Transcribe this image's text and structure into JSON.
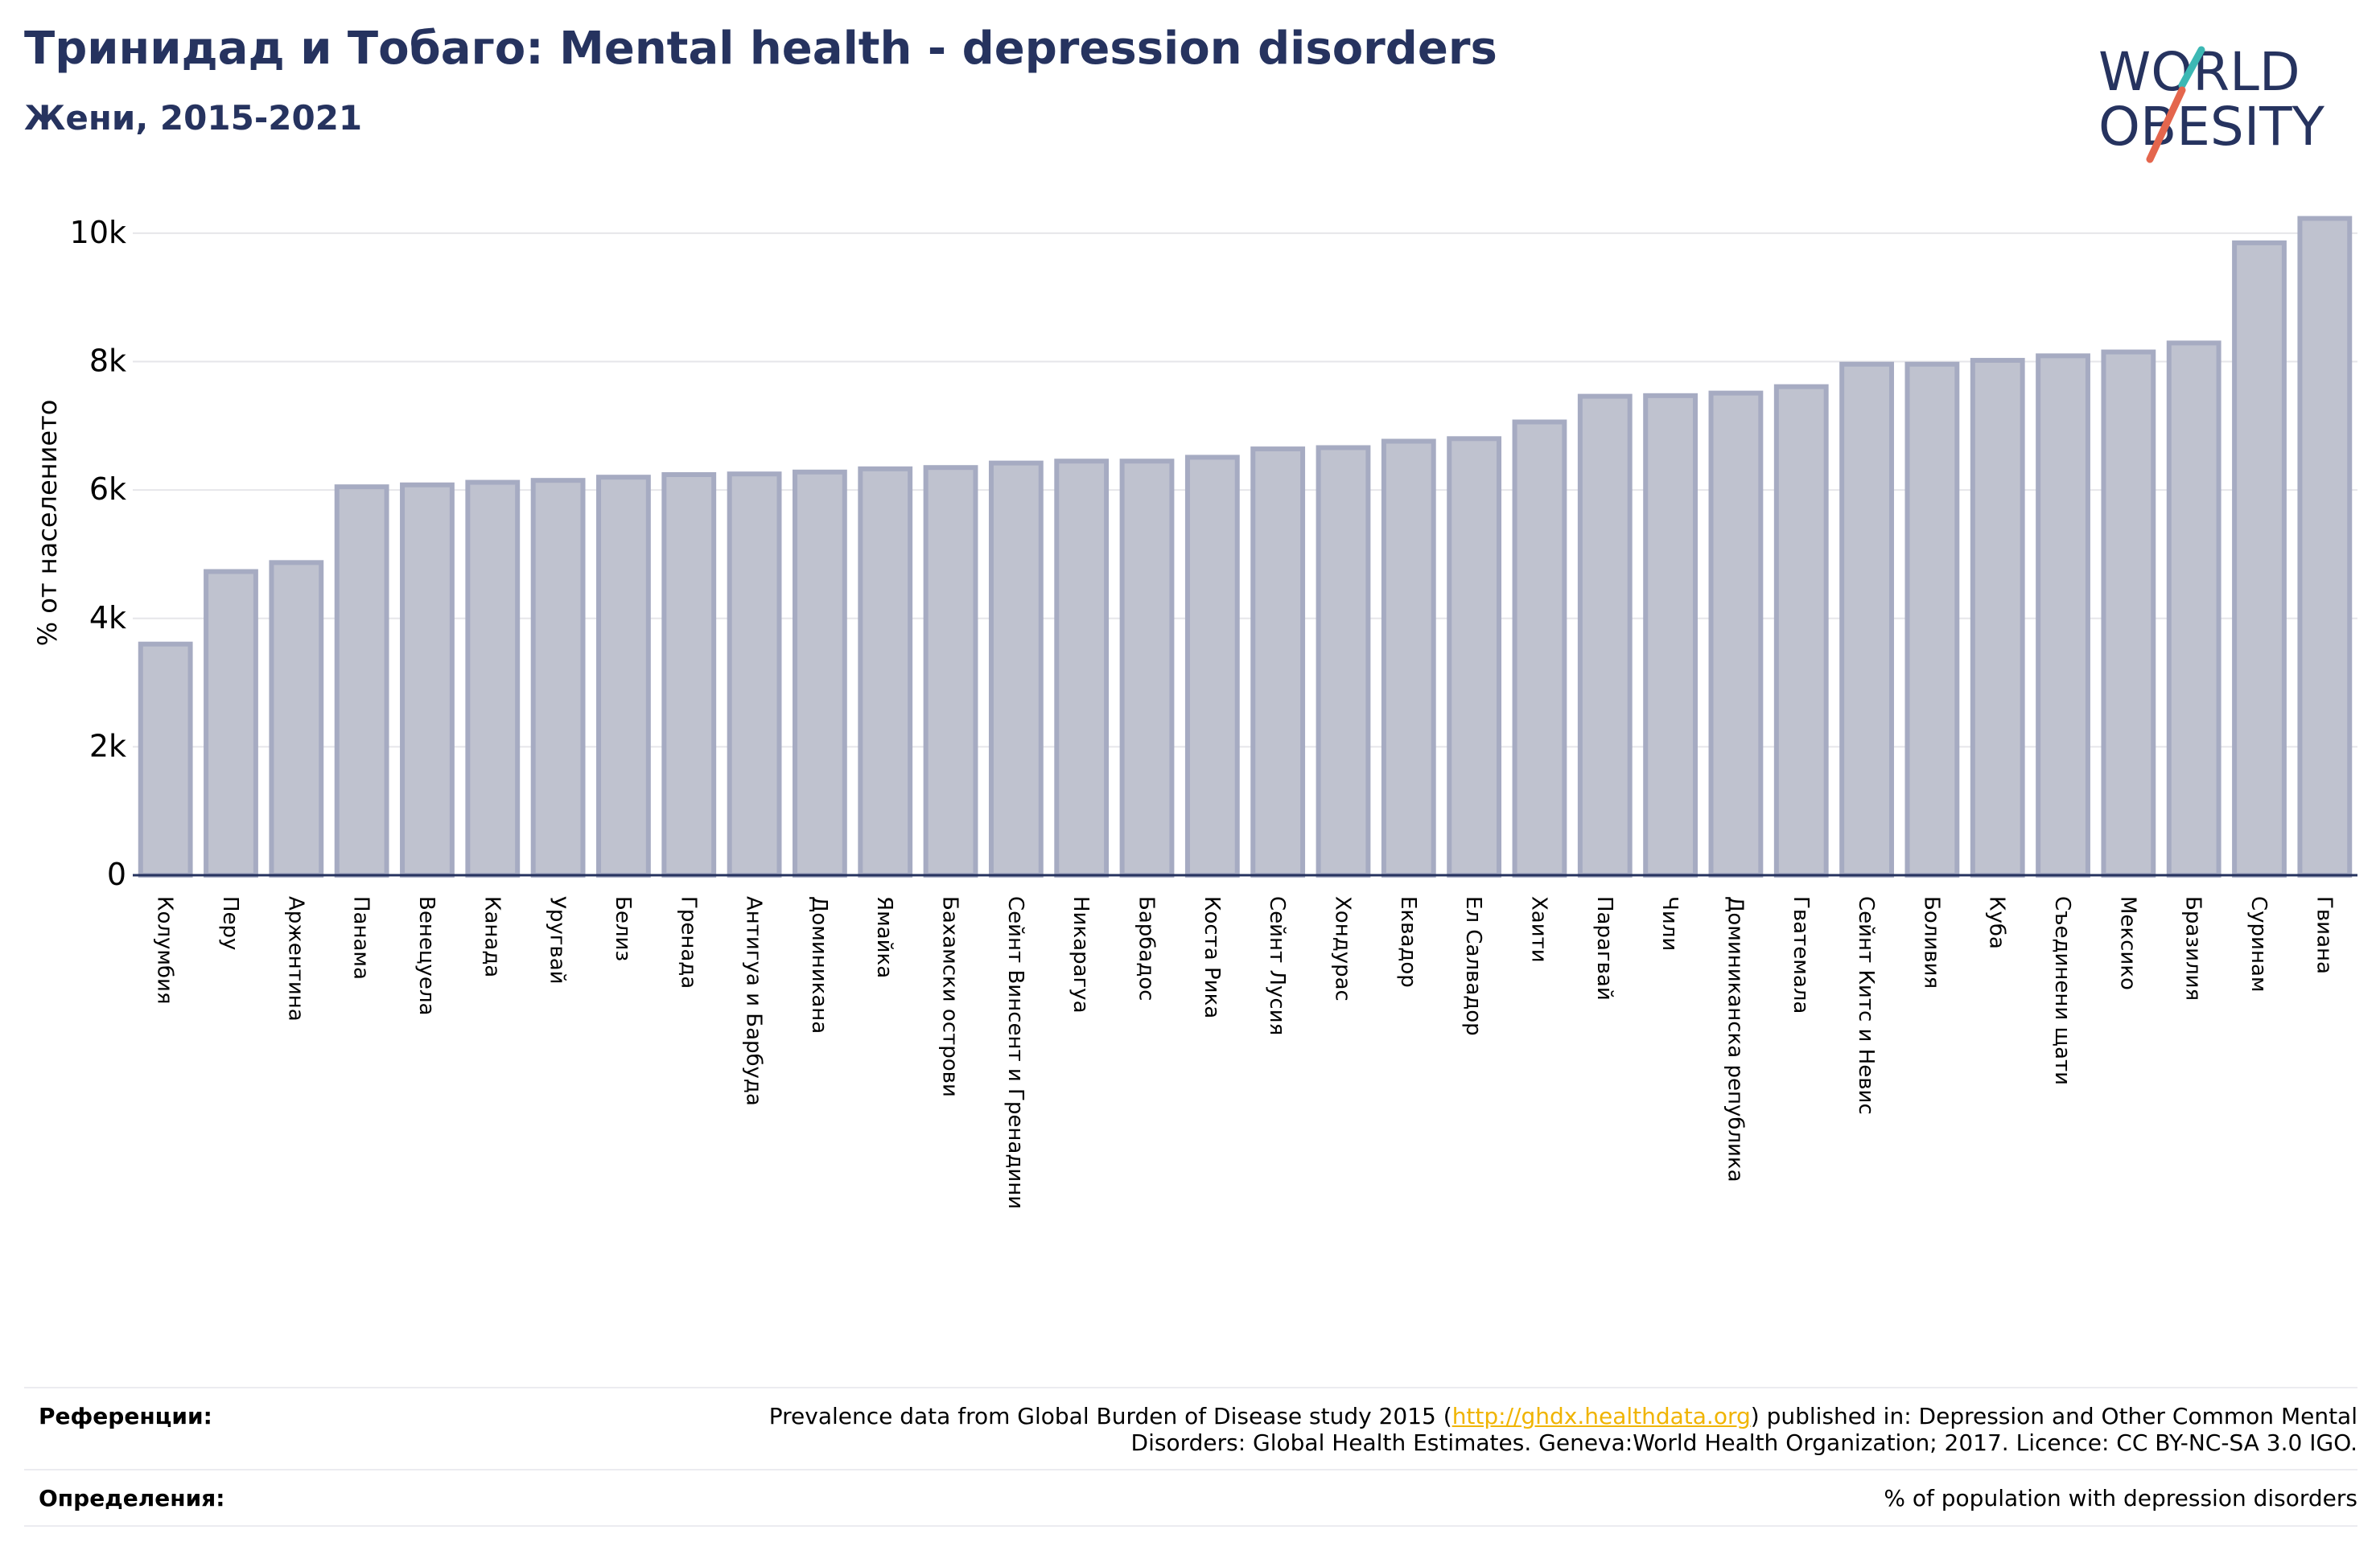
{
  "header": {
    "title": "Тринидад и Тобаго: Mental health - depression disorders",
    "subtitle": "Жени, 2015-2021"
  },
  "logo": {
    "line1": "WORLD",
    "line2": "OBESITY",
    "text_color": "#26335f",
    "accent_teal": "#3cb8b4",
    "accent_red": "#e4664d"
  },
  "colors": {
    "bar_fill": "#bfc2cf",
    "bar_stroke": "#a6abc2",
    "title": "#26335f",
    "link": "#f0b400"
  },
  "chart_data": {
    "type": "bar",
    "ylabel": "% от населението",
    "ylim": [
      0,
      10500
    ],
    "yticks": [
      0,
      2000,
      4000,
      6000,
      8000,
      10000
    ],
    "ytick_labels": [
      "0",
      "2k",
      "4k",
      "6k",
      "8k",
      "10k"
    ],
    "grid": true,
    "categories": [
      "Колумбия",
      "Перу",
      "Аржентина",
      "Панама",
      "Венецуела",
      "Канада",
      "Уругвай",
      "Белиз",
      "Гренада",
      "Антигуа и Барбуда",
      "Доминикана",
      "Ямайка",
      "Бахамски острови",
      "Сейнт Винсент и Гренадини",
      "Никарагуа",
      "Барбадос",
      "Коста Рика",
      "Сейнт Лусия",
      "Хондурас",
      "Еквадор",
      "Ел Салвадор",
      "Хаити",
      "Парагвай",
      "Чили",
      "Доминиканска република",
      "Гватемала",
      "Сейнт Китс и Невис",
      "Боливия",
      "Куба",
      "Съединени щати",
      "Мексико",
      "Бразилия",
      "Суринам",
      "Гвиана"
    ],
    "values": [
      3600,
      4730,
      4870,
      6050,
      6080,
      6120,
      6150,
      6200,
      6240,
      6250,
      6280,
      6330,
      6350,
      6420,
      6450,
      6450,
      6510,
      6640,
      6660,
      6760,
      6800,
      7060,
      7460,
      7470,
      7510,
      7610,
      7960,
      7960,
      8020,
      8090,
      8150,
      8290,
      9850,
      10230
    ]
  },
  "footer": {
    "references_label": "Референции:",
    "references_pre": "Prevalence data from Global Burden of Disease study 2015 (",
    "references_link": "http://ghdx.healthdata.org",
    "references_post": ") published in: Depression and Other Common Mental",
    "references_line2": "Disorders: Global Health Estimates. Geneva:World Health Organization; 2017. Licence: CC BY-NC-SA 3.0 IGO.",
    "definitions_label": "Определения:",
    "definitions_text": "% of population with depression disorders"
  }
}
